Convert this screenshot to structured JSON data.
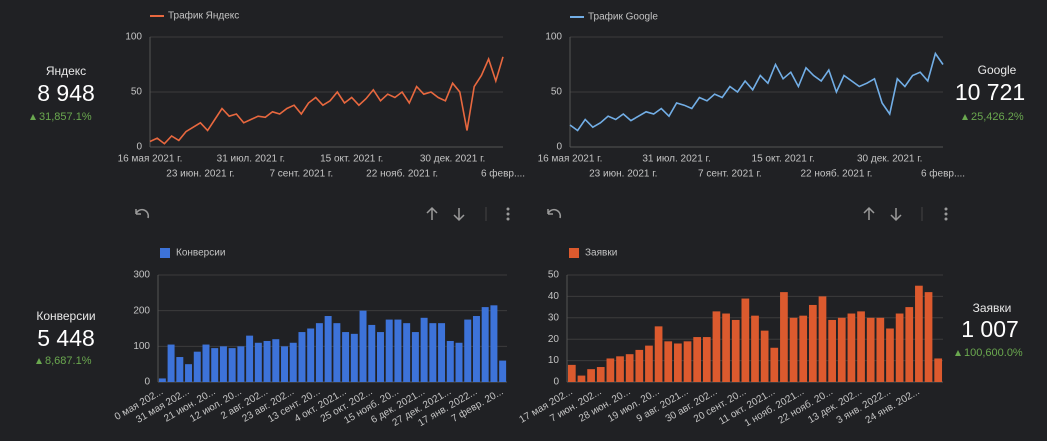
{
  "scorecards": [
    {
      "title": "Яндекс",
      "value": "8 948",
      "delta": "31,857.1%"
    },
    {
      "title": "Google",
      "value": "10 721",
      "delta": "25,426.2%"
    },
    {
      "title": "Конверсии",
      "value": "5 448",
      "delta": "8,687.1%"
    },
    {
      "title": "Заявки",
      "value": "1 007",
      "delta": "100,600.0%"
    }
  ],
  "chart_data": [
    {
      "type": "line",
      "categories": [
        "16 мая 2021 г.",
        null,
        null,
        null,
        null,
        null,
        null,
        "23 июн. 2021 г.",
        null,
        null,
        null,
        null,
        null,
        null,
        "31 июл. 2021 г.",
        null,
        null,
        null,
        null,
        null,
        null,
        "7 сент. 2021 г.",
        null,
        null,
        null,
        null,
        null,
        null,
        "15 окт. 2021 г.",
        null,
        null,
        null,
        null,
        null,
        null,
        "22 нояб. 2021 г.",
        null,
        null,
        null,
        null,
        null,
        null,
        "30 дек. 2021 г.",
        null,
        null,
        null,
        null,
        null,
        null,
        "6 февр...."
      ],
      "series": [
        {
          "name": "Трафик Яндекс",
          "color": "#e8683f",
          "values": [
            5,
            8,
            3,
            10,
            6,
            14,
            18,
            22,
            15,
            25,
            35,
            28,
            30,
            22,
            25,
            28,
            27,
            32,
            30,
            35,
            38,
            30,
            40,
            45,
            38,
            42,
            50,
            40,
            45,
            38,
            44,
            52,
            42,
            48,
            45,
            50,
            40,
            55,
            48,
            50,
            45,
            42,
            58,
            50,
            15,
            55,
            65,
            80,
            60,
            82
          ]
        }
      ],
      "ylim": [
        0,
        100
      ],
      "yticks": [
        0,
        50,
        100
      ],
      "grid": true
    },
    {
      "type": "line",
      "categories": [
        "16 мая 2021 г.",
        null,
        null,
        null,
        null,
        null,
        null,
        "23 июн. 2021 г.",
        null,
        null,
        null,
        null,
        null,
        null,
        "31 июл. 2021 г.",
        null,
        null,
        null,
        null,
        null,
        null,
        "7 сент. 2021 г.",
        null,
        null,
        null,
        null,
        null,
        null,
        "15 окт. 2021 г.",
        null,
        null,
        null,
        null,
        null,
        null,
        "22 нояб. 2021 г.",
        null,
        null,
        null,
        null,
        null,
        null,
        "30 дек. 2021 г.",
        null,
        null,
        null,
        null,
        null,
        null,
        "6 февр...."
      ],
      "series": [
        {
          "name": "Трафик Google",
          "color": "#72aee6",
          "values": [
            20,
            15,
            25,
            18,
            22,
            28,
            25,
            30,
            24,
            28,
            32,
            30,
            35,
            28,
            40,
            38,
            35,
            45,
            42,
            48,
            45,
            55,
            50,
            60,
            52,
            65,
            58,
            75,
            62,
            68,
            55,
            72,
            65,
            60,
            70,
            50,
            65,
            60,
            55,
            58,
            62,
            40,
            30,
            62,
            55,
            65,
            68,
            60,
            85,
            75
          ]
        }
      ],
      "ylim": [
        0,
        100
      ],
      "yticks": [
        0,
        50,
        100
      ],
      "grid": true
    },
    {
      "type": "bar",
      "categories": [
        "0 мая 202...",
        null,
        null,
        "31 мая 202...",
        null,
        null,
        "21 июн. 20...",
        null,
        null,
        "12 июл. 20...",
        null,
        null,
        "2 авг. 202...",
        null,
        null,
        "23 авг. 202...",
        null,
        null,
        "13 сент. 20...",
        null,
        null,
        "4 окт. 2021...",
        null,
        null,
        "25 окт. 202...",
        null,
        null,
        "15 нояб. 20...",
        null,
        null,
        "6 дек. 2021...",
        null,
        null,
        "27 дек. 2021...",
        null,
        null,
        "17 янв. 2022...",
        null,
        null,
        "7 февр. 20..."
      ],
      "series": [
        {
          "name": "Конверсии",
          "color": "#3d73d9",
          "values": [
            10,
            105,
            70,
            50,
            85,
            105,
            95,
            100,
            95,
            100,
            130,
            110,
            115,
            120,
            100,
            110,
            140,
            150,
            165,
            185,
            165,
            140,
            135,
            200,
            160,
            140,
            175,
            175,
            165,
            140,
            180,
            165,
            165,
            115,
            110,
            175,
            185,
            210,
            215,
            60
          ]
        }
      ],
      "ylim": [
        0,
        300
      ],
      "yticks": [
        0,
        100,
        200,
        300
      ],
      "grid": true
    },
    {
      "type": "bar",
      "categories": [
        "17 мая 202...",
        null,
        null,
        "7 июн. 202...",
        null,
        null,
        "28 июн. 20...",
        null,
        null,
        "19 июл. 20...",
        null,
        null,
        "9 авг. 2021...",
        null,
        null,
        "30 авг. 202...",
        null,
        null,
        "20 сент. 20...",
        null,
        null,
        "11 окт. 2021...",
        null,
        null,
        "1 нояб. 2021...",
        null,
        null,
        "22 нояб. 20...",
        null,
        null,
        "13 дек. 202...",
        null,
        null,
        "3 янв. 2022...",
        null,
        null,
        "24 янв. 202...",
        null,
        null
      ],
      "series": [
        {
          "name": "Заявки",
          "color": "#dc5a2e",
          "values": [
            8,
            3,
            6,
            7,
            11,
            12,
            13,
            15,
            17,
            26,
            19,
            18,
            19,
            21,
            21,
            33,
            32,
            29,
            39,
            31,
            24,
            16,
            42,
            30,
            31,
            36,
            40,
            29,
            30,
            32,
            33,
            30,
            30,
            25,
            32,
            35,
            45,
            42,
            11
          ]
        }
      ],
      "ylim": [
        0,
        50
      ],
      "yticks": [
        0,
        10,
        20,
        30,
        40,
        50
      ],
      "grid": true
    }
  ]
}
